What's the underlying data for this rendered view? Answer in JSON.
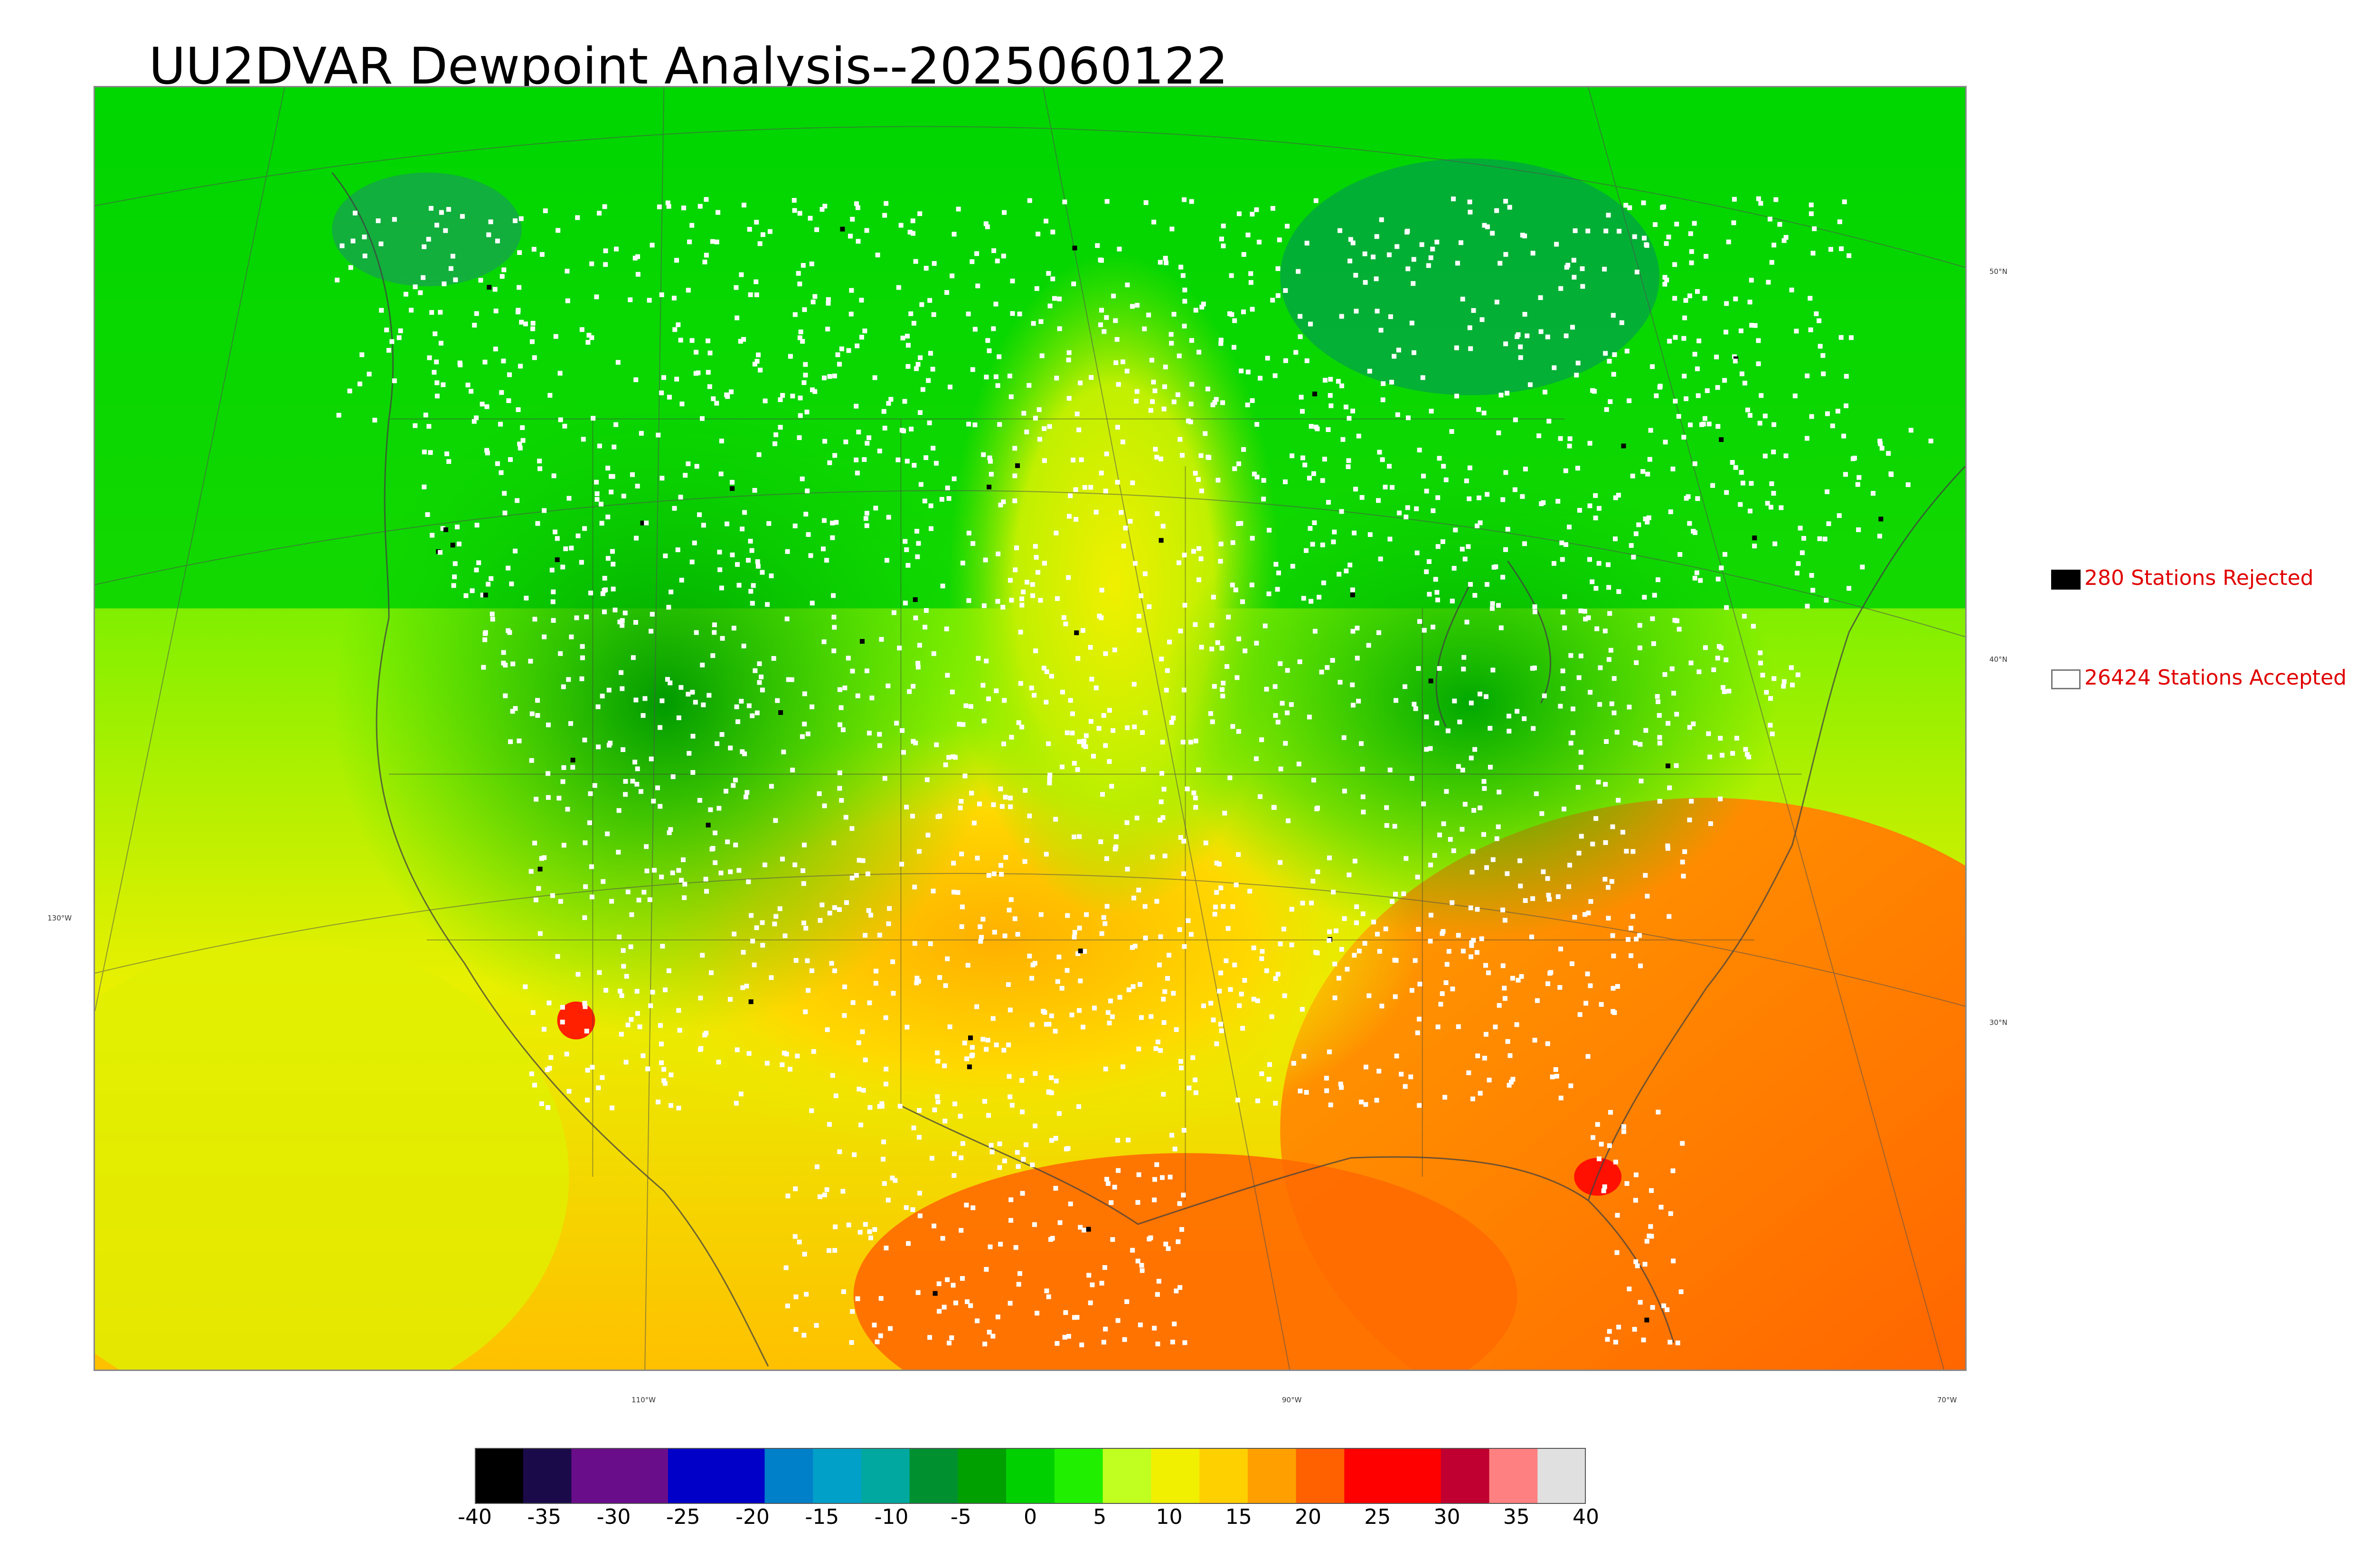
{
  "title": "UU2DVAR Dewpoint Analysis--2025060122",
  "legend": {
    "rejected": {
      "label": "280 Stations Rejected",
      "color": "#000000"
    },
    "accepted": {
      "label": "26424 Stations Accepted",
      "color": "#ffffff"
    }
  },
  "graticule": {
    "lat_labels": [
      "50°N",
      "40°N",
      "30°N"
    ],
    "lon_labels": [
      "130°W",
      "110°W",
      "90°W",
      "70°W"
    ]
  },
  "colorbar": {
    "ticks": [
      "-40",
      "-35",
      "-30",
      "-25",
      "-20",
      "-15",
      "-10",
      "-5",
      "0",
      "5",
      "10",
      "15",
      "20",
      "25",
      "30",
      "35",
      "40"
    ],
    "min": -40,
    "max": 40,
    "colors": [
      "#000000",
      "#1a0a4a",
      "#6a0d8a",
      "#6a0d8a",
      "#0000c8",
      "#0000c8",
      "#0080c8",
      "#00a0c8",
      "#00a8a0",
      "#009030",
      "#00a000",
      "#00d000",
      "#20f000",
      "#c0ff20",
      "#f0f000",
      "#ffd000",
      "#ffa000",
      "#ff6000",
      "#ff0000",
      "#ff0000",
      "#c00030",
      "#ff8080",
      "#e0e0e0"
    ]
  }
}
